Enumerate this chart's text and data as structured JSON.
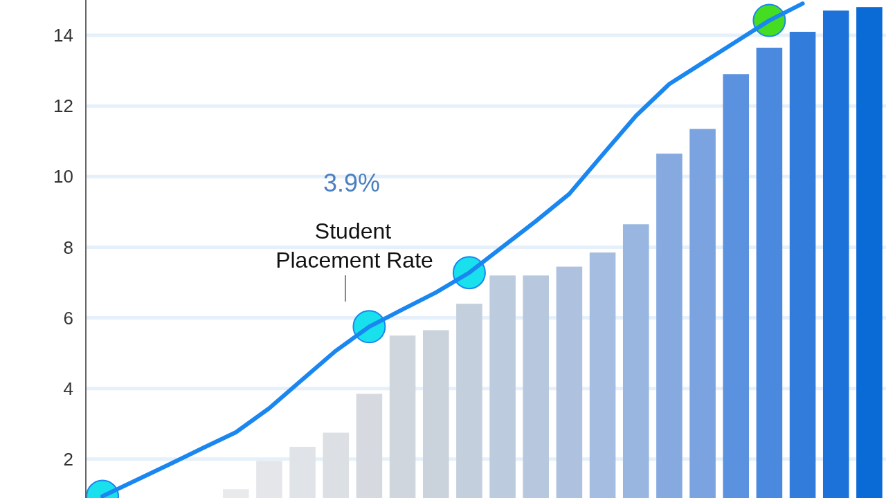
{
  "chart_data": {
    "type": "bar",
    "annotations": [
      "3.9%",
      "Student Placement Rate"
    ],
    "categories": [
      null,
      null,
      null,
      null,
      null,
      null,
      null,
      null,
      null,
      null,
      null,
      null,
      null,
      null,
      null,
      null,
      null,
      null,
      null,
      null,
      null,
      null,
      null,
      null
    ],
    "ylim": [
      0.9,
      15
    ],
    "yticks": [
      2,
      4,
      6,
      8,
      10,
      12,
      14
    ],
    "grid": "y",
    "tick_labels": "y",
    "series": [
      {
        "values": [
          null,
          null,
          null,
          null,
          1.15,
          1.95,
          2.35,
          2.75,
          3.85,
          5.5,
          5.65,
          6.4,
          7.2,
          7.2,
          7.45,
          7.85,
          8.65,
          10.65,
          11.35,
          12.9,
          13.65,
          14.1,
          14.7,
          14.8
        ],
        "colors": [
          "#e8eaec",
          "#e8eaec",
          "#e8eaec",
          "#e8eaec",
          "#e8eaec",
          "#e4e6e9",
          "#e0e3e7",
          "#dcdfe4",
          "#d6dae0",
          "#d0d6de",
          "#cad2dc",
          "#c4cfdd",
          "#bccbde",
          "#b6c7de",
          "#aec2df",
          "#a4bde0",
          "#98b6e0",
          "#86aae0",
          "#7aa3e0",
          "#5a92df",
          "#4a89de",
          "#327cdb",
          "#1c72d8",
          "#0a6ad6"
        ]
      },
      {
        "type": "line",
        "color": "#1a86f0",
        "values": [
          0.95,
          1.4,
          1.85,
          2.31,
          2.76,
          3.44,
          4.26,
          5.07,
          5.75,
          6.24,
          6.72,
          7.28,
          8.01,
          8.74,
          9.51,
          10.62,
          11.72,
          12.62,
          13.22,
          13.82,
          14.42,
          14.9,
          null,
          null
        ]
      },
      {
        "type": "scatter",
        "marker": "circle",
        "values": [
          0.95,
          null,
          null,
          null,
          null,
          null,
          null,
          null,
          5.75,
          null,
          null,
          7.28,
          null,
          null,
          null,
          null,
          null,
          null,
          null,
          null,
          14.42,
          null,
          null,
          null
        ],
        "colors": [
          "#18e0ec",
          null,
          null,
          null,
          null,
          null,
          null,
          null,
          "#18e0ec",
          null,
          null,
          "#18e0ec",
          null,
          null,
          null,
          null,
          null,
          null,
          null,
          null,
          "#44dd22",
          null,
          null,
          null
        ]
      }
    ]
  }
}
